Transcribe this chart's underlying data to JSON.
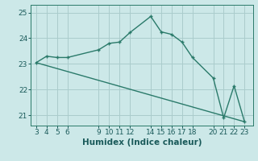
{
  "title": "",
  "xlabel": "Humidex (Indice chaleur)",
  "background_color": "#cce8e8",
  "grid_color": "#aacccc",
  "line_color": "#2a7a6a",
  "xlim": [
    2.5,
    23.8
  ],
  "ylim": [
    20.6,
    25.3
  ],
  "yticks": [
    21,
    22,
    23,
    24,
    25
  ],
  "xticks": [
    3,
    4,
    5,
    6,
    9,
    10,
    11,
    12,
    14,
    15,
    16,
    17,
    18,
    20,
    21,
    22,
    23
  ],
  "line1_x": [
    3,
    4,
    5,
    6,
    9,
    10,
    11,
    12,
    14,
    15,
    16,
    17,
    18,
    20,
    21,
    22,
    23
  ],
  "line1_y": [
    23.05,
    23.3,
    23.25,
    23.25,
    23.55,
    23.8,
    23.85,
    24.22,
    24.85,
    24.25,
    24.15,
    23.85,
    23.25,
    22.45,
    20.9,
    22.15,
    20.75
  ],
  "line2_x": [
    3,
    23
  ],
  "line2_y": [
    23.05,
    20.75
  ],
  "marker_size": 3.5,
  "line_width": 1.0
}
